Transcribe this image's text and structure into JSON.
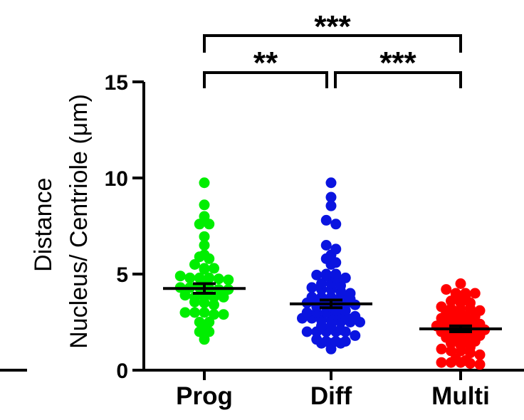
{
  "chart_data": {
    "type": "scatter",
    "title": "",
    "ylabel_lines": [
      "Distance",
      "Nucleus/ Centriole (μm)"
    ],
    "ylim": [
      0,
      15
    ],
    "yticks": [
      "0",
      "5",
      "10",
      "15"
    ],
    "ytick_values": [
      0,
      5,
      10,
      15
    ],
    "categories": [
      "Prog",
      "Diff",
      "Multi"
    ],
    "series": [
      {
        "category": "Prog",
        "color": "#00ee00",
        "mean": 4.25,
        "sem": [
          4.0,
          4.5
        ],
        "values": [
          9.75,
          8.6,
          8.0,
          7.6,
          7.6,
          6.95,
          6.5,
          6.0,
          5.9,
          5.8,
          5.5,
          5.3,
          5.3,
          5.25,
          4.9,
          4.8,
          4.8,
          4.8,
          4.75,
          4.7,
          4.4,
          4.3,
          4.3,
          4.3,
          4.25,
          4.2,
          4.2,
          3.9,
          3.8,
          3.8,
          3.8,
          3.8,
          3.55,
          3.5,
          3.4,
          3.0,
          3.0,
          3.0,
          2.9,
          2.9,
          2.5,
          2.5,
          2.2,
          2.0,
          2.0,
          1.6
        ]
      },
      {
        "category": "Diff",
        "color": "#0a14e0",
        "mean": 3.45,
        "sem": [
          3.25,
          3.65
        ],
        "values": [
          9.75,
          9.0,
          8.55,
          7.8,
          7.6,
          6.5,
          6.3,
          6.0,
          5.8,
          5.6,
          5.5,
          5.0,
          5.0,
          4.95,
          4.9,
          4.8,
          4.8,
          4.5,
          4.5,
          4.4,
          4.3,
          4.2,
          4.2,
          4.1,
          4.0,
          3.8,
          3.8,
          3.8,
          3.8,
          3.7,
          3.5,
          3.5,
          3.5,
          3.4,
          3.4,
          3.4,
          3.3,
          3.3,
          3.1,
          3.1,
          3.0,
          3.0,
          3.0,
          2.9,
          2.8,
          2.8,
          2.7,
          2.7,
          2.6,
          2.6,
          2.5,
          2.5,
          2.5,
          2.3,
          2.3,
          2.1,
          2.0,
          2.0,
          2.0,
          2.0,
          2.0,
          1.8,
          1.6,
          1.5,
          1.5,
          1.5,
          1.4,
          1.4,
          1.4,
          1.1
        ]
      },
      {
        "category": "Multi",
        "color": "#ff0000",
        "mean": 2.15,
        "sem": [
          2.0,
          2.3
        ],
        "values": [
          4.5,
          4.2,
          4.0,
          4.0,
          4.0,
          3.8,
          3.8,
          3.6,
          3.5,
          3.5,
          3.3,
          3.2,
          3.2,
          3.2,
          3.1,
          3.0,
          2.9,
          2.8,
          2.8,
          2.7,
          2.6,
          2.6,
          2.5,
          2.4,
          2.3,
          2.3,
          2.3,
          2.2,
          2.1,
          2.1,
          2.0,
          2.0,
          1.9,
          1.9,
          1.8,
          1.7,
          1.6,
          1.5,
          1.5,
          1.4,
          1.3,
          1.2,
          1.1,
          1.0,
          1.0,
          0.9,
          0.8,
          0.6,
          0.5,
          0.4,
          0.4,
          0.4,
          0.35,
          0.3
        ]
      }
    ],
    "significance": [
      {
        "from": "Prog",
        "to": "Multi",
        "label": "***"
      },
      {
        "from": "Prog",
        "to": "Diff",
        "label": "**"
      },
      {
        "from": "Diff",
        "to": "Multi",
        "label": "***"
      }
    ]
  }
}
